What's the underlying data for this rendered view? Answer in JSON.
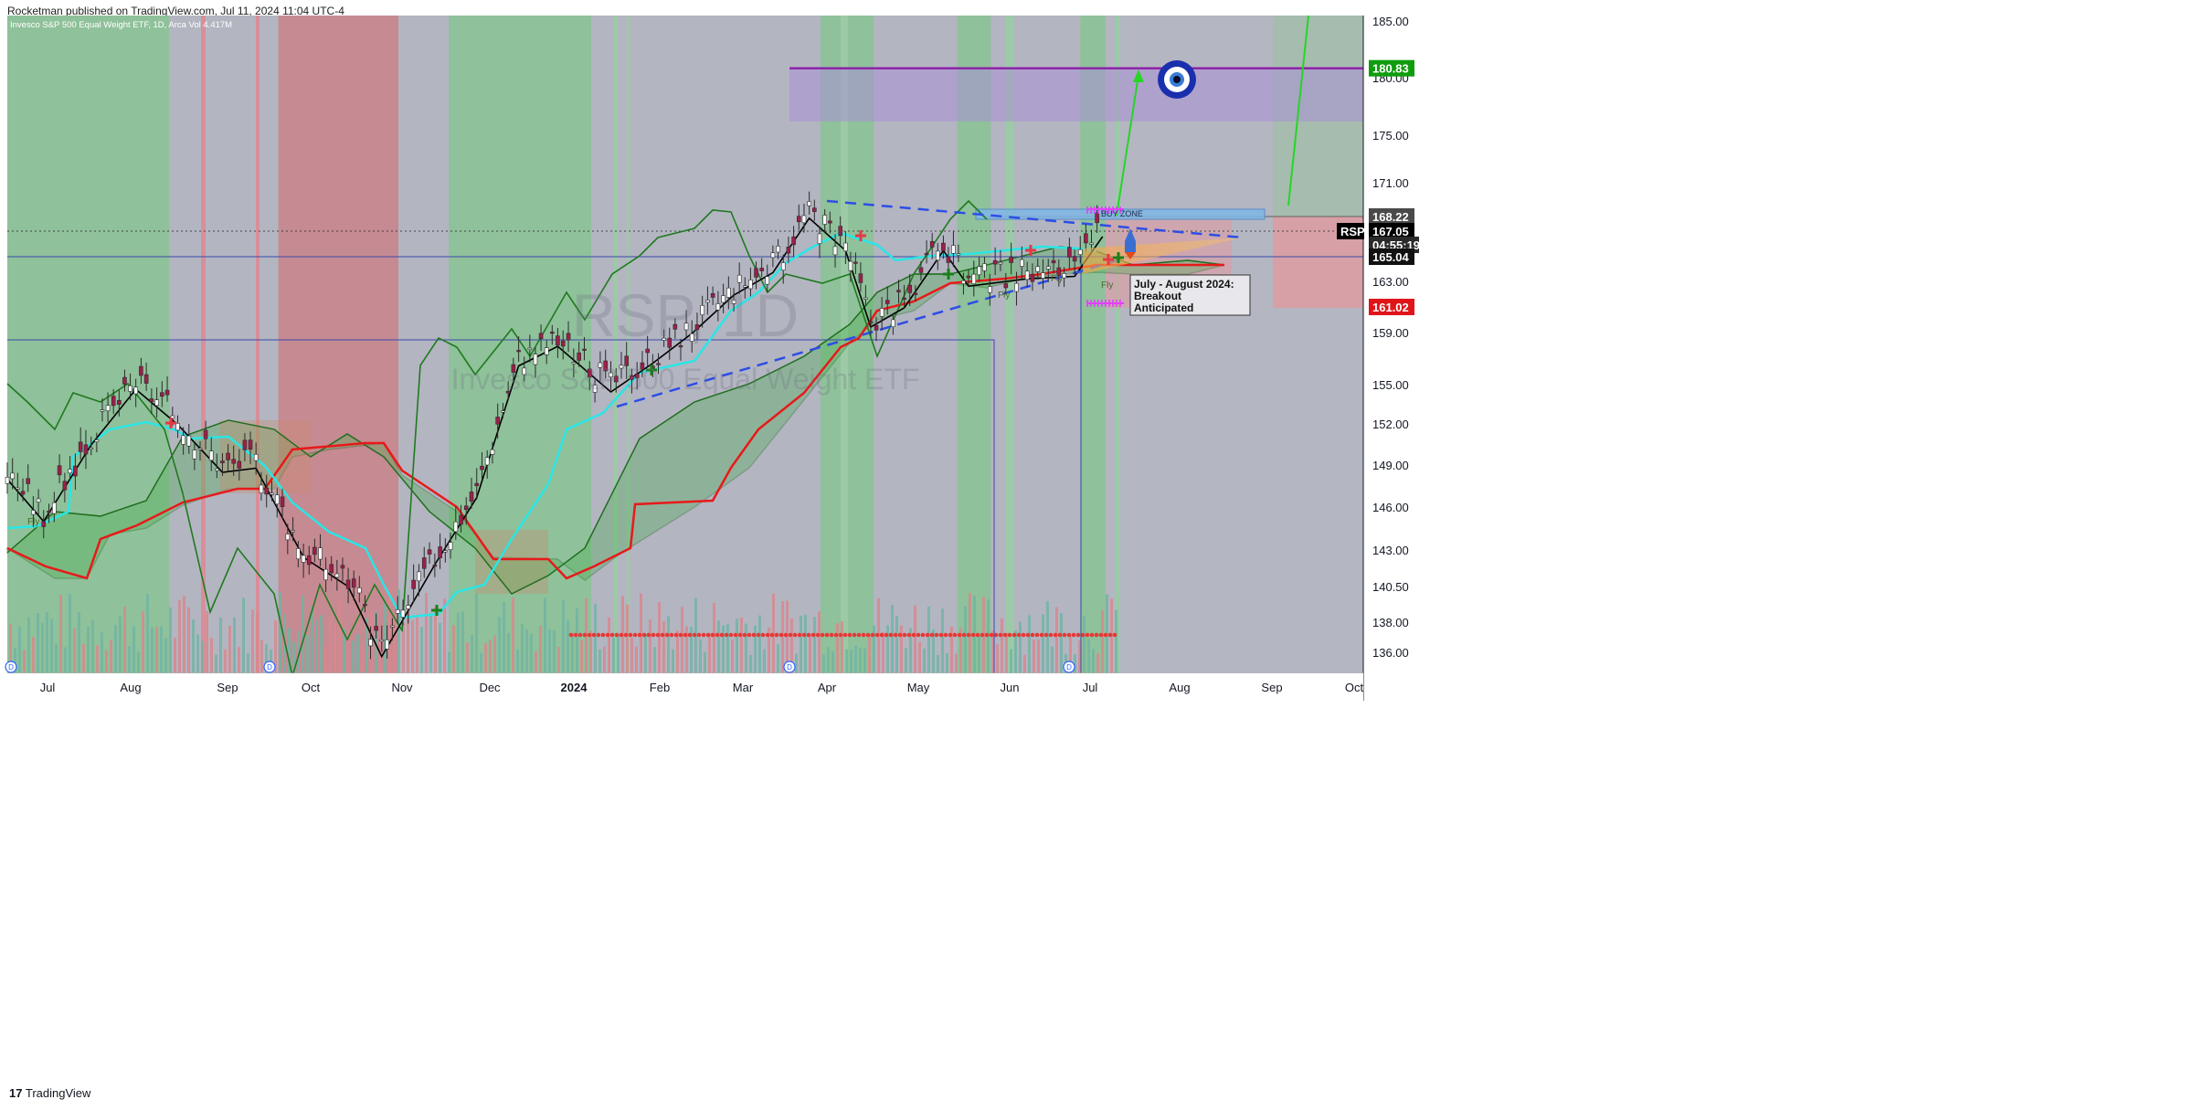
{
  "header": {
    "published": "Rocketman published on TradingView.com, Jul 11, 2024 11:04 UTC-4"
  },
  "legend": {
    "symbol_line": "Invesco S&P 500 Equal Weight ETF, 1D, Arca",
    "volume_label": "Vol",
    "volume_value": "4.417M"
  },
  "watermark": {
    "ticker": "RSP, 1D",
    "name": "Invesco S&P 500 Equal Weight ETF"
  },
  "footer": {
    "brand": "TradingView",
    "logo": "tradingview-logo"
  },
  "annotations": {
    "buy_zone": "BUY ZONE",
    "callout_lines": [
      "July - August 2024:",
      "Breakout",
      "Anticipated"
    ],
    "fly_labels": [
      "Fly",
      "Fly",
      "Fly",
      "Fly"
    ]
  },
  "price_labels": {
    "target": "180.83",
    "high": "168.22",
    "symbol": "RSP",
    "last": "167.05",
    "countdown": "04:55:19",
    "support": "165.04",
    "low": "161.02"
  },
  "colors": {
    "green_zone": "#8fc19a",
    "red_zone": "#c68a92",
    "grey_zone": "#b3b5c1",
    "kumo_bull": "#4caf50",
    "kumo_bear": "#c98a6a",
    "tenkan": "#000000",
    "kijun_cyan": "#29e6e6",
    "senkou_red": "#e8191a",
    "chikou": "#1f7a1f",
    "target_box": "#a98fd6",
    "target_line": "#8e24aa",
    "buy_zone": "#7fb8e6",
    "trendline": "#2d4de6",
    "up_candle": "#ffffff",
    "down_candle": "#9c1f4a",
    "last_price": "#000000",
    "target_label": "#0f9d0f",
    "low_label": "#e0151a",
    "projection_arrow": "#25d625",
    "eye_icon": "blue-evil-eye-icon",
    "rocket_icon": "rocket-icon"
  },
  "chart_data": {
    "type": "candlestick",
    "title": "Invesco S&P 500 Equal Weight ETF, 1D, Arca",
    "xlabel": "",
    "ylabel": "",
    "y_ticks": [
      "185.00",
      "180.00",
      "175.00",
      "171.00",
      "168.00",
      "165.00",
      "163.00",
      "159.00",
      "155.00",
      "152.00",
      "149.00",
      "146.00",
      "143.00",
      "140.50",
      "138.00",
      "136.00"
    ],
    "x_ticks": [
      "Jul",
      "Aug",
      "Sep",
      "Oct",
      "Nov",
      "Dec",
      "2024",
      "Feb",
      "Mar",
      "Apr",
      "May",
      "Jun",
      "Jul",
      "Aug",
      "Sep",
      "Oct"
    ],
    "x_range": [
      "2023-06-15",
      "2024-10-10"
    ],
    "y_scale": "non-linear (labels as printed)",
    "grid": false,
    "legend": "top-left",
    "price_series_approx": [
      {
        "date": "2023-06-15",
        "close": 148.5
      },
      {
        "date": "2023-06-28",
        "close": 145.5
      },
      {
        "date": "2023-07-15",
        "close": 151.0
      },
      {
        "date": "2023-07-31",
        "close": 155.2
      },
      {
        "date": "2023-08-15",
        "close": 152.5
      },
      {
        "date": "2023-08-31",
        "close": 149.0
      },
      {
        "date": "2023-09-12",
        "close": 149.3
      },
      {
        "date": "2023-09-29",
        "close": 143.0
      },
      {
        "date": "2023-10-15",
        "close": 141.0
      },
      {
        "date": "2023-10-27",
        "close": 136.2
      },
      {
        "date": "2023-11-15",
        "close": 142.5
      },
      {
        "date": "2023-11-30",
        "close": 147.2
      },
      {
        "date": "2023-12-15",
        "close": 157.0
      },
      {
        "date": "2023-12-29",
        "close": 158.5
      },
      {
        "date": "2024-01-17",
        "close": 155.0
      },
      {
        "date": "2024-02-01",
        "close": 157.2
      },
      {
        "date": "2024-02-15",
        "close": 159.5
      },
      {
        "date": "2024-03-01",
        "close": 162.5
      },
      {
        "date": "2024-03-15",
        "close": 164.3
      },
      {
        "date": "2024-03-28",
        "close": 168.5
      },
      {
        "date": "2024-04-10",
        "close": 166.0
      },
      {
        "date": "2024-04-19",
        "close": 160.0
      },
      {
        "date": "2024-05-01",
        "close": 161.5
      },
      {
        "date": "2024-05-15",
        "close": 166.0
      },
      {
        "date": "2024-05-24",
        "close": 163.2
      },
      {
        "date": "2024-06-14",
        "close": 163.8
      },
      {
        "date": "2024-07-01",
        "close": 164.0
      },
      {
        "date": "2024-07-11",
        "close": 167.05
      }
    ],
    "levels": [
      {
        "name": "Target",
        "value": 180.83
      },
      {
        "name": "High",
        "value": 168.22
      },
      {
        "name": "Last",
        "value": 167.05
      },
      {
        "name": "Support",
        "value": 165.04
      },
      {
        "name": "Low",
        "value": 161.02
      }
    ],
    "zones": [
      {
        "name": "Target zone",
        "from": 176.2,
        "to": 180.83
      },
      {
        "name": "BUY ZONE",
        "from": 167.6,
        "to": 168.6
      }
    ],
    "background_regime": [
      {
        "from": "2023-06-15",
        "to": "2023-08-12",
        "state": "green"
      },
      {
        "from": "2023-08-12",
        "to": "2023-09-20",
        "state": "grey"
      },
      {
        "from": "2023-09-20",
        "to": "2023-11-02",
        "state": "red"
      },
      {
        "from": "2023-11-02",
        "to": "2023-11-20",
        "state": "grey"
      },
      {
        "from": "2023-11-20",
        "to": "2024-01-10",
        "state": "green"
      },
      {
        "from": "2024-01-10",
        "to": "2024-04-01",
        "state": "grey"
      },
      {
        "from": "2024-04-01",
        "to": "2024-04-20",
        "state": "green"
      },
      {
        "from": "2024-04-20",
        "to": "2024-05-20",
        "state": "grey"
      },
      {
        "from": "2024-05-20",
        "to": "2024-06-01",
        "state": "green"
      },
      {
        "from": "2024-06-01",
        "to": "2024-07-03",
        "state": "grey"
      },
      {
        "from": "2024-07-03",
        "to": "2024-07-12",
        "state": "green"
      }
    ]
  }
}
